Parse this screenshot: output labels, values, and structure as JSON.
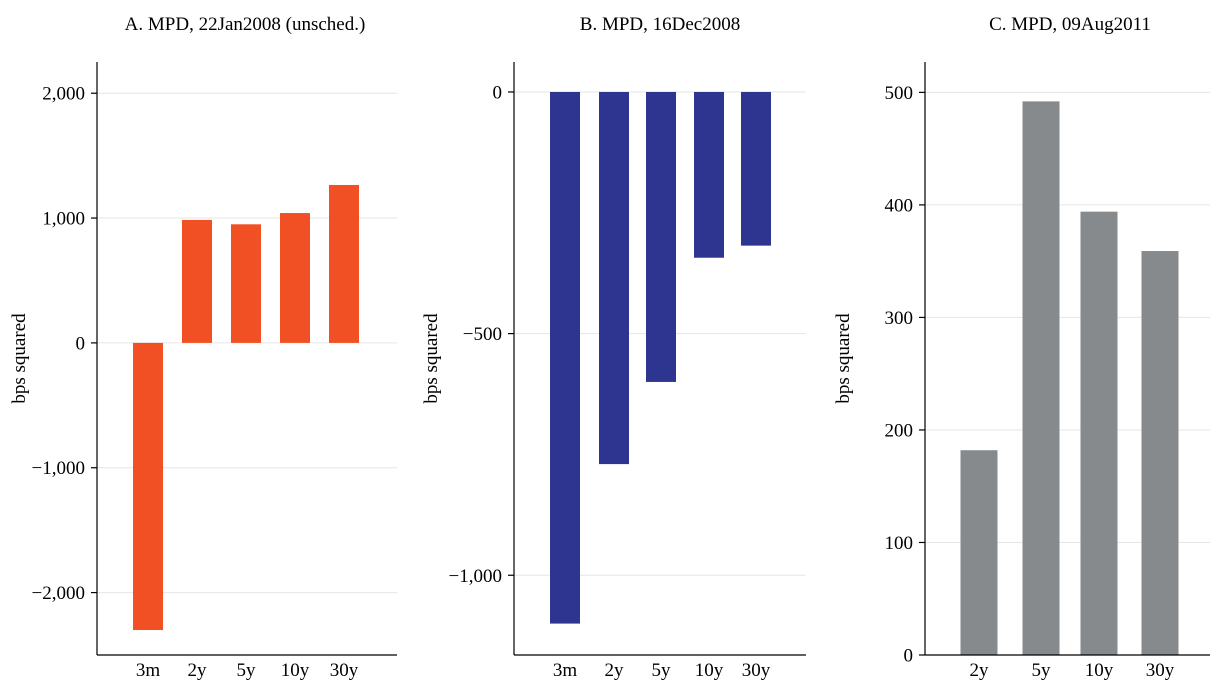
{
  "chart_data": [
    {
      "type": "bar",
      "title": "A. MPD, 22Jan2008 (unsched.)",
      "ylabel": "bps squared",
      "categories": [
        "3m",
        "2y",
        "5y",
        "10y",
        "30y"
      ],
      "values": [
        -2300,
        985,
        950,
        1040,
        1265
      ],
      "ylim": [
        -2500,
        2250
      ],
      "yticks": [
        2000,
        1000,
        0,
        -1000,
        -2000
      ],
      "ytick_labels": [
        "2,000",
        "1,000",
        "0",
        "−1,000",
        "−2,000"
      ],
      "color": "#f05023",
      "grid": true
    },
    {
      "type": "bar",
      "title": "B. MPD, 16Dec2008",
      "ylabel": "bps squared",
      "categories": [
        "3m",
        "2y",
        "5y",
        "10y",
        "30y"
      ],
      "values": [
        -1100,
        -770,
        -600,
        -343,
        -318
      ],
      "ylim": [
        -1165,
        62
      ],
      "yticks": [
        0,
        -500,
        -1000
      ],
      "ytick_labels": [
        "0",
        "−500",
        "−1,000"
      ],
      "color": "#2e3591",
      "grid": true
    },
    {
      "type": "bar",
      "title": "C. MPD, 09Aug2011",
      "ylabel": "bps squared",
      "categories": [
        "2y",
        "5y",
        "10y",
        "30y"
      ],
      "values": [
        182,
        492,
        394,
        359
      ],
      "ylim": [
        0,
        527
      ],
      "yticks": [
        500,
        400,
        300,
        200,
        100,
        0
      ],
      "ytick_labels": [
        "500",
        "400",
        "300",
        "200",
        "100",
        "0"
      ],
      "color": "#868a8c",
      "grid": true
    }
  ]
}
